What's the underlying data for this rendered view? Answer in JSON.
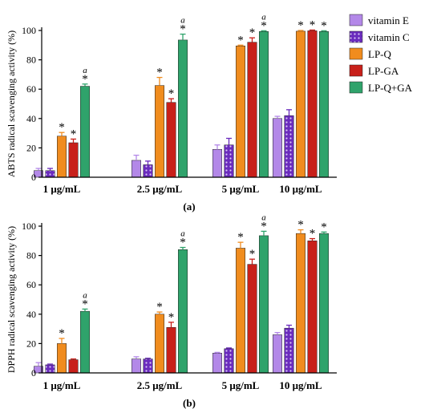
{
  "legend": {
    "placement": "right-top",
    "items": [
      {
        "label": "vitamin E",
        "color": "#b388e8",
        "pattern": "solid"
      },
      {
        "label": "vitamin C",
        "color": "#6a2bbd",
        "pattern": "dots"
      },
      {
        "label": "LP-Q",
        "color": "#f08c1e",
        "pattern": "solid"
      },
      {
        "label": "LP-GA",
        "color": "#c8201a",
        "pattern": "solid"
      },
      {
        "label": "LP-Q+GA",
        "color": "#2fa36b",
        "pattern": "solid"
      }
    ]
  },
  "chart_data": [
    {
      "type": "bar",
      "panel_label": "(a)",
      "ylabel": "ABTS radical scavenging activity (%)",
      "ylim": [
        0,
        100
      ],
      "yticks": [
        "0",
        "20",
        "40",
        "60",
        "80",
        "100"
      ],
      "categories": [
        "1  μg/mL",
        "2.5  μg/mL",
        "5 μg/mL",
        "10  μg/mL"
      ],
      "series": [
        {
          "name": "vitamin E",
          "values": [
            4.5,
            11.5,
            19,
            40
          ],
          "errors": [
            1.5,
            3.5,
            3,
            1.5
          ]
        },
        {
          "name": "vitamin C",
          "values": [
            4.5,
            8.5,
            22,
            42
          ],
          "errors": [
            1.5,
            2.5,
            4.5,
            4
          ]
        },
        {
          "name": "LP-Q",
          "values": [
            28,
            62.5,
            89.5,
            99.5
          ],
          "errors": [
            2.5,
            5.5,
            0.5,
            0.5
          ]
        },
        {
          "name": "LP-GA",
          "values": [
            23.5,
            51,
            92,
            99.8
          ],
          "errors": [
            2.5,
            2.5,
            3,
            0.5
          ]
        },
        {
          "name": "LP-Q+GA",
          "values": [
            62,
            93.5,
            99.3,
            99.3
          ],
          "errors": [
            1.5,
            4,
            0.5,
            0.5
          ]
        }
      ],
      "annotations": {
        "star": "*",
        "a": "a",
        "stars": [
          [
            false,
            false,
            true,
            true,
            true
          ],
          [
            false,
            false,
            true,
            true,
            true
          ],
          [
            false,
            false,
            true,
            true,
            true
          ],
          [
            false,
            false,
            true,
            true,
            true
          ]
        ],
        "a_marks": [
          [
            false,
            false,
            false,
            false,
            true
          ],
          [
            false,
            false,
            false,
            false,
            true
          ],
          [
            false,
            false,
            false,
            false,
            true
          ],
          [
            false,
            false,
            false,
            false,
            false
          ]
        ]
      }
    },
    {
      "type": "bar",
      "panel_label": "(b)",
      "ylabel": "DPPH radical scavenging activity (%)",
      "ylim": [
        0,
        100
      ],
      "yticks": [
        "0",
        "20",
        "40",
        "60",
        "80",
        "100"
      ],
      "categories": [
        "1  μg/mL",
        "2.5  μg/mL",
        "5 μg/mL",
        "10  μg/mL"
      ],
      "series": [
        {
          "name": "vitamin E",
          "values": [
            4.5,
            9.5,
            13.5,
            26
          ],
          "errors": [
            2.5,
            1.5,
            0.5,
            1.5
          ]
        },
        {
          "name": "vitamin C",
          "values": [
            5.5,
            9.5,
            16.5,
            30.5
          ],
          "errors": [
            0.5,
            0.5,
            0.5,
            2
          ]
        },
        {
          "name": "LP-Q",
          "values": [
            20,
            40,
            85,
            95
          ],
          "errors": [
            3.5,
            1.5,
            4,
            2.5
          ]
        },
        {
          "name": "LP-GA",
          "values": [
            9,
            31,
            74,
            90
          ],
          "errors": [
            0.5,
            3.5,
            3.5,
            1.5
          ]
        },
        {
          "name": "LP-Q+GA",
          "values": [
            42,
            84,
            93.5,
            95
          ],
          "errors": [
            1.5,
            1.5,
            3,
            1
          ]
        }
      ],
      "annotations": {
        "star": "*",
        "a": "a",
        "stars": [
          [
            false,
            false,
            true,
            false,
            true
          ],
          [
            false,
            false,
            true,
            true,
            true
          ],
          [
            false,
            false,
            true,
            true,
            true
          ],
          [
            false,
            false,
            true,
            true,
            true
          ]
        ],
        "a_marks": [
          [
            false,
            false,
            false,
            false,
            true
          ],
          [
            false,
            false,
            false,
            false,
            true
          ],
          [
            false,
            false,
            false,
            false,
            true
          ],
          [
            false,
            false,
            false,
            false,
            false
          ]
        ]
      }
    }
  ]
}
